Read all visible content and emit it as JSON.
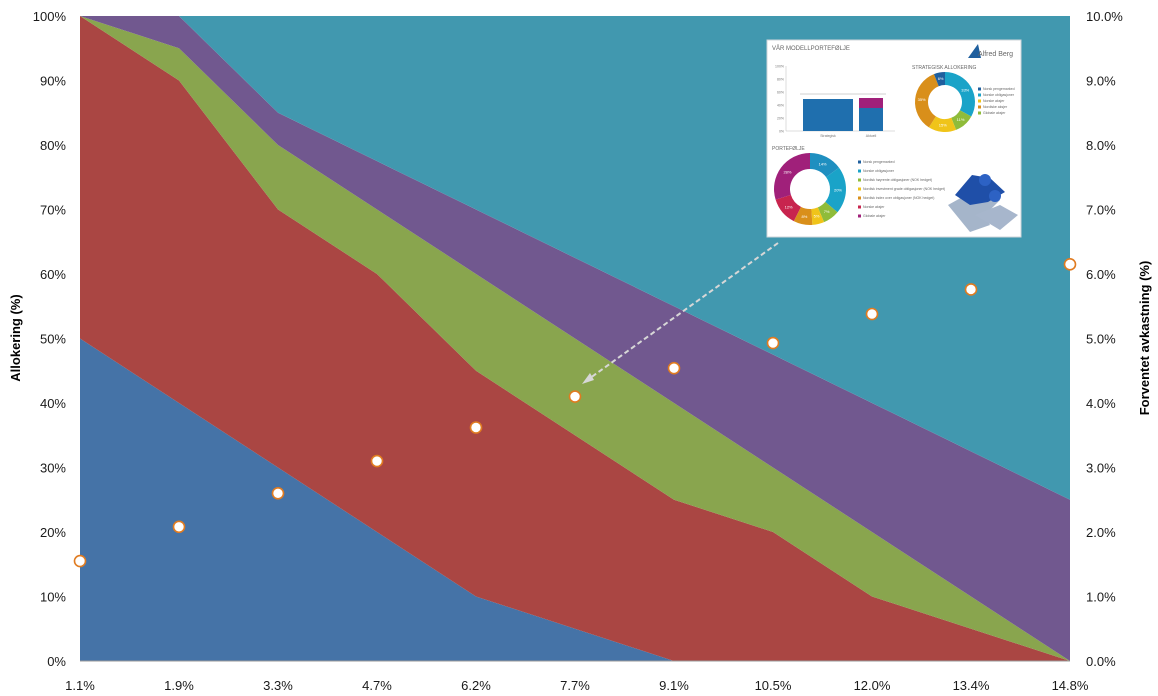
{
  "chart_data": {
    "type": "area",
    "x": [
      "1.1%",
      "1.9%",
      "3.3%",
      "4.7%",
      "6.2%",
      "7.7%",
      "9.1%",
      "10.5%",
      "12.0%",
      "13.4%",
      "14.8%"
    ],
    "stacked": true,
    "ylabel": "Allokering (%)",
    "ylim": [
      0,
      100
    ],
    "yticks": [
      "0%",
      "10%",
      "20%",
      "30%",
      "40%",
      "50%",
      "60%",
      "70%",
      "80%",
      "90%",
      "100%"
    ],
    "y2label": "Forventet avkastning (%)",
    "y2lim": [
      0,
      10
    ],
    "y2ticks": [
      "0.0%",
      "1.0%",
      "2.0%",
      "3.0%",
      "4.0%",
      "5.0%",
      "6.0%",
      "7.0%",
      "8.0%",
      "9.0%",
      "10.0%"
    ],
    "series": [
      {
        "color": "#4573a7",
        "values": [
          50,
          40,
          30,
          20,
          10,
          5,
          0,
          0,
          0,
          0,
          0
        ]
      },
      {
        "color": "#aa4643",
        "values": [
          50,
          50,
          40,
          40,
          35,
          30,
          25,
          20,
          10,
          5,
          0
        ]
      },
      {
        "color": "#89a54e",
        "values": [
          0,
          5,
          10,
          10,
          15,
          15,
          15,
          10,
          10,
          5,
          0
        ]
      },
      {
        "color": "#71588f",
        "values": [
          0,
          5,
          5,
          7.5,
          10,
          12.5,
          15,
          17.5,
          20,
          22.5,
          25
        ]
      },
      {
        "color": "#4198af",
        "values": [
          0,
          0,
          15,
          22.5,
          30,
          37.5,
          45,
          52.5,
          60,
          67.5,
          75
        ]
      }
    ],
    "line_series": {
      "axis": "secondary",
      "marker": "circle",
      "marker_color": "#ffffff",
      "marker_edge": "#e07b20",
      "values": [
        1.55,
        2.08,
        2.6,
        3.1,
        3.62,
        4.1,
        4.54,
        4.93,
        5.38,
        5.76,
        6.15
      ]
    },
    "grid": false,
    "legend": "none"
  },
  "inset": {
    "title": "VÅR MODELLPORTEFØLJE",
    "logo": "Alfred Berg",
    "strategic_title": "STRATEGISK ALLOKERING",
    "portfolio_title": "PORTEFØLJE",
    "bar_scale": [
      "100%",
      "80%",
      "60%",
      "40%",
      "20%",
      "0%"
    ],
    "bar_labels": [
      "Strategisk",
      "Aktuell"
    ],
    "strategic_legend": [
      "Norsk pengemarked",
      "Norske obligasjoner",
      "Norske aksjer",
      "Nordiske aksjer",
      "Globale aksjer"
    ],
    "strategic_colors": [
      "#1f5f9e",
      "#1aa3c8",
      "#f0c419",
      "#d98f1a",
      "#8fbc3a"
    ],
    "donut1": [
      {
        "label": "33%",
        "value": 33,
        "color": "#1aa3c8"
      },
      {
        "label": "11%",
        "value": 11,
        "color": "#8fbc3a"
      },
      {
        "label": "15%",
        "value": 15,
        "color": "#f0c419"
      },
      {
        "label": "35%",
        "value": 35,
        "color": "#d98f1a"
      },
      {
        "label": "6%",
        "value": 6,
        "color": "#1f5f9e"
      }
    ],
    "portfolio_legend": [
      "Norsk pengemarked",
      "Norske obligasjoner",
      "Nordisk høyrente obligasjoner (NOK hedget)",
      "Nordisk investment grade obligasjoner (NOK hedget)",
      "Nordisk index over obligasjoner (NOK hedget)",
      "Norske aksjer",
      "Globale aksjer"
    ],
    "portfolio_colors": [
      "#1f5f9e",
      "#1aa3c8",
      "#8fbc3a",
      "#f0c419",
      "#d98f1a",
      "#c8244e",
      "#a0207a"
    ],
    "donut2": [
      {
        "label": "14%",
        "value": 14,
        "color": "#1f8fc0"
      },
      {
        "label": "20%",
        "value": 20,
        "color": "#1aa3c8"
      },
      {
        "label": "7%",
        "value": 7,
        "color": "#8fbc3a"
      },
      {
        "label": "5%",
        "value": 5,
        "color": "#f0c419"
      },
      {
        "label": "8%",
        "value": 8,
        "color": "#d98f1a"
      },
      {
        "label": "12%",
        "value": 12,
        "color": "#c8244e"
      },
      {
        "label": "28%",
        "value": 28,
        "color": "#a0207a"
      }
    ]
  }
}
